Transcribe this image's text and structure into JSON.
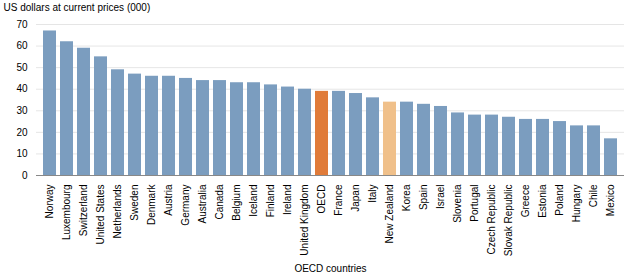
{
  "chart_data": {
    "type": "bar",
    "categories": [
      "Norway",
      "Luxembourg",
      "Switzerland",
      "United States",
      "Netherlands",
      "Sweden",
      "Denmark",
      "Austria",
      "Germany",
      "Australia",
      "Canada",
      "Belgium",
      "Iceland",
      "Finland",
      "Ireland",
      "United Kingdom",
      "OECD",
      "France",
      "Japan",
      "Italy",
      "New Zealand",
      "Korea",
      "Spain",
      "Israel",
      "Slovenia",
      "Portugal",
      "Czech Republic",
      "Slovak Republic",
      "Greece",
      "Estonia",
      "Poland",
      "Hungary",
      "Chile",
      "Mexico"
    ],
    "values": [
      67,
      62,
      59,
      55,
      49,
      47,
      46,
      46,
      45,
      44,
      44,
      43,
      43,
      42,
      41,
      40,
      39,
      39,
      38,
      36,
      34,
      34,
      33,
      32,
      29,
      28,
      28,
      27,
      26,
      26,
      25,
      23,
      23,
      17
    ],
    "colors": [
      "#7b9dbf",
      "#7b9dbf",
      "#7b9dbf",
      "#7b9dbf",
      "#7b9dbf",
      "#7b9dbf",
      "#7b9dbf",
      "#7b9dbf",
      "#7b9dbf",
      "#7b9dbf",
      "#7b9dbf",
      "#7b9dbf",
      "#7b9dbf",
      "#7b9dbf",
      "#7b9dbf",
      "#7b9dbf",
      "#e07b39",
      "#7b9dbf",
      "#7b9dbf",
      "#7b9dbf",
      "#f0c08a",
      "#7b9dbf",
      "#7b9dbf",
      "#7b9dbf",
      "#7b9dbf",
      "#7b9dbf",
      "#7b9dbf",
      "#7b9dbf",
      "#7b9dbf",
      "#7b9dbf",
      "#7b9dbf",
      "#7b9dbf",
      "#7b9dbf",
      "#7b9dbf"
    ],
    "ylabel": "US dollars at current prices (000)",
    "xlabel": "OECD countries",
    "ylim": [
      0,
      70
    ],
    "yticks": [
      0,
      10,
      20,
      30,
      40,
      50,
      60,
      70
    ],
    "grid": true
  }
}
